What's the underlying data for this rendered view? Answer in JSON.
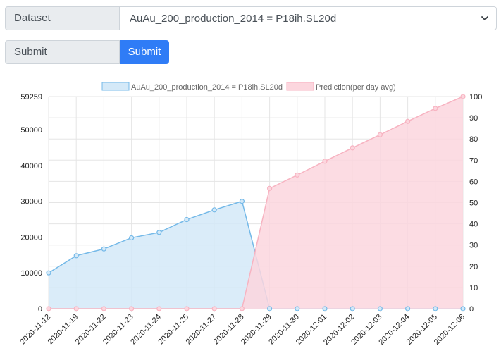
{
  "form": {
    "dataset_label": "Dataset",
    "dataset_value": "AuAu_200_production_2014 = P18ih.SL20d",
    "submit_label": "Submit",
    "submit_button": "Submit"
  },
  "chart_data": {
    "type": "line",
    "categories": [
      "2020-11-12",
      "2020-11-19",
      "2020-11-22",
      "2020-11-23",
      "2020-11-24",
      "2020-11-25",
      "2020-11-27",
      "2020-11-28",
      "2020-11-29",
      "2020-11-30",
      "2020-12-01",
      "2020-12-02",
      "2020-12-03",
      "2020-12-04",
      "2020-12-05",
      "2020-12-06"
    ],
    "series": [
      {
        "name": "AuAu_200_production_2014 = P18ih.SL20d",
        "axis": "left",
        "color": "#74b9e8",
        "fill": "#d4e9f8",
        "values": [
          10000,
          14800,
          16700,
          19800,
          21300,
          24900,
          27600,
          30000,
          0,
          0,
          0,
          0,
          0,
          0,
          0,
          0
        ]
      },
      {
        "name": "Prediction(per day avg)",
        "axis": "right",
        "color": "#f7b3c1",
        "fill": "#fcd6de",
        "values": [
          0,
          0,
          0,
          0,
          0,
          0,
          0,
          0,
          56.7,
          63,
          69.5,
          75.8,
          82,
          88.3,
          94.4,
          100
        ]
      }
    ],
    "y_left": {
      "ticks": [
        0,
        10000,
        20000,
        30000,
        40000,
        50000,
        59259
      ],
      "ylim": [
        0,
        59259
      ]
    },
    "y_right": {
      "ticks": [
        0,
        10,
        20,
        30,
        40,
        50,
        60,
        70,
        80,
        90,
        100
      ],
      "ylim": [
        0,
        100
      ]
    },
    "grid": true,
    "legend": "top"
  }
}
